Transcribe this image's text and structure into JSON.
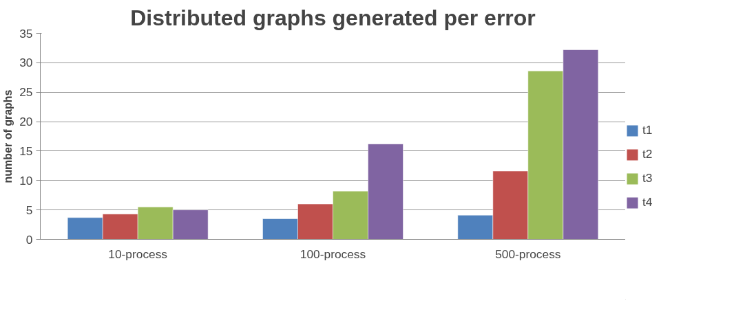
{
  "chart_data": {
    "type": "bar",
    "title": "Distributed graphs generated per error",
    "ylabel": "number of graphs",
    "categories": [
      "10-process",
      "100-process",
      "500-process"
    ],
    "series": [
      {
        "name": "t1",
        "color": "#4f81bd",
        "values": [
          3.7,
          3.5,
          4.1
        ]
      },
      {
        "name": "t2",
        "color": "#c0504d",
        "values": [
          4.3,
          6.0,
          11.6
        ]
      },
      {
        "name": "t3",
        "color": "#9bbb59",
        "values": [
          5.5,
          8.2,
          28.6
        ]
      },
      {
        "name": "t4",
        "color": "#8064a2",
        "values": [
          5.0,
          16.2,
          32.2
        ]
      }
    ],
    "ylim": [
      0,
      35
    ],
    "yticks": [
      0,
      5,
      10,
      15,
      20,
      25,
      30,
      35
    ],
    "grid": "y",
    "legend": "right"
  }
}
